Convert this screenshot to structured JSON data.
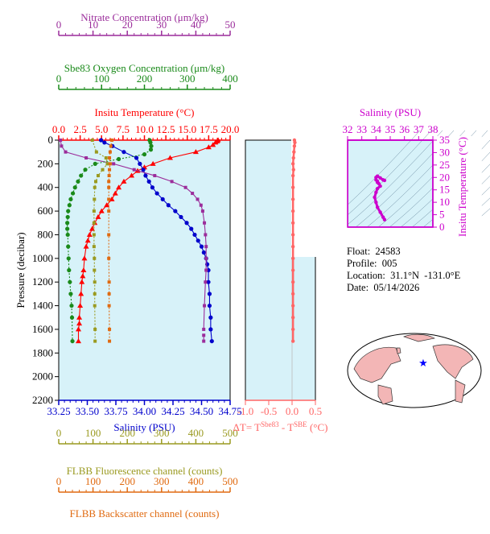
{
  "colors": {
    "nitrate": "#9b2d9b",
    "oxygen": "#1a8a1a",
    "temperature": "#ff0000",
    "salinity": "#0000cc",
    "salinity_ts": "#cc00cc",
    "fluorescence": "#9a9a20",
    "backscatter": "#e06a10",
    "delta_t": "#ff6666",
    "plot_bg": "#d7f2f9"
  },
  "info": {
    "float": "Float:  24583",
    "profile": "Profile:  005",
    "location": "Location:  31.1°N  -131.0°E",
    "date": "Date:  05/14/2026"
  },
  "chart_data": [
    {
      "type": "line",
      "ylabel": "Pressure (decibar)",
      "ylim": [
        2200,
        0
      ],
      "yticks": [
        "0",
        "200",
        "400",
        "600",
        "800",
        "1000",
        "1200",
        "1400",
        "1600",
        "1800",
        "2000",
        "2200"
      ],
      "grid": false,
      "axes": {
        "nitrate": {
          "label": "Nitrate Concentration (μm/kg)",
          "xlim": [
            0,
            50
          ],
          "ticks": [
            "0",
            "10",
            "20",
            "30",
            "40",
            "50"
          ]
        },
        "oxygen": {
          "label": "Sbe83 Oxygen Concentration (μm/kg)",
          "xlim": [
            0,
            400
          ],
          "ticks": [
            "0",
            "100",
            "200",
            "300",
            "400"
          ]
        },
        "temperature": {
          "label": "Insitu Temperature (°C)",
          "xlim": [
            0,
            20
          ],
          "ticks": [
            "0.0",
            "2.5",
            "5.0",
            "7.5",
            "10.0",
            "12.5",
            "15.0",
            "17.5",
            "20.0"
          ]
        },
        "salinity": {
          "label": "Salinity (PSU)",
          "xlim": [
            33.25,
            34.75
          ],
          "ticks": [
            "33.25",
            "33.50",
            "33.75",
            "34.00",
            "34.25",
            "34.50",
            "34.75"
          ]
        },
        "fluorescence": {
          "label": "FLBB Fluorescence channel (counts)",
          "xlim": [
            0,
            500
          ],
          "ticks": [
            "0",
            "100",
            "200",
            "300",
            "400",
            "500"
          ]
        },
        "backscatter": {
          "label": "FLBB Backscatter channel (counts)",
          "xlim": [
            0,
            500
          ],
          "ticks": [
            "0",
            "100",
            "200",
            "300",
            "400",
            "500"
          ]
        }
      },
      "series": [
        {
          "axis": "temperature",
          "marker": "triangle",
          "x": [
            18.6,
            18.5,
            18.3,
            18.0,
            17.5,
            16.0,
            13.0,
            11.0,
            10.0,
            9.2,
            8.5,
            7.6,
            7.0,
            6.6,
            6.2,
            5.6,
            5.0,
            4.6,
            4.2,
            3.9,
            3.6,
            3.4,
            3.2,
            3.0,
            2.9,
            2.8,
            2.7,
            2.6,
            2.5,
            2.4,
            2.4,
            2.3,
            2.3
          ],
          "y": [
            0,
            10,
            20,
            40,
            60,
            100,
            150,
            200,
            230,
            260,
            300,
            350,
            400,
            450,
            500,
            550,
            600,
            650,
            700,
            750,
            800,
            850,
            900,
            1000,
            1100,
            1150,
            1200,
            1300,
            1400,
            1500,
            1550,
            1600,
            1700
          ]
        },
        {
          "axis": "salinity",
          "marker": "circle",
          "x": [
            33.62,
            33.65,
            33.72,
            33.82,
            33.93,
            33.96,
            33.99,
            34.01,
            34.04,
            34.07,
            34.11,
            34.16,
            34.21,
            34.27,
            34.32,
            34.37,
            34.41,
            34.44,
            34.47,
            34.5,
            34.52,
            34.54,
            34.55,
            34.56,
            34.56,
            34.57,
            34.57,
            34.58,
            34.58,
            34.59
          ],
          "y": [
            0,
            20,
            50,
            100,
            150,
            200,
            250,
            300,
            350,
            400,
            450,
            500,
            550,
            600,
            650,
            700,
            750,
            800,
            850,
            900,
            950,
            1000,
            1050,
            1100,
            1200,
            1300,
            1400,
            1500,
            1600,
            1700
          ]
        },
        {
          "axis": "nitrate",
          "marker": "square",
          "x": [
            0.5,
            0.8,
            2,
            8,
            16,
            22,
            28,
            33,
            37,
            39,
            40.5,
            41.5,
            42,
            42.5,
            42.8,
            43,
            43,
            43,
            42.8,
            42.5,
            42.3
          ],
          "y": [
            0,
            50,
            100,
            150,
            200,
            250,
            300,
            350,
            400,
            450,
            500,
            550,
            600,
            700,
            800,
            900,
            1000,
            1100,
            1200,
            1400,
            1600
          ]
        },
        {
          "axis": "nitrate",
          "marker": "square",
          "x": [
            42.3,
            42.3
          ],
          "y": [
            1650,
            1700
          ]
        },
        {
          "axis": "oxygen",
          "marker": "circle",
          "x": [
            212,
            214,
            216,
            215,
            200,
            140,
            85,
            62,
            52,
            45,
            38,
            33,
            28,
            25,
            22,
            21,
            20,
            20,
            21,
            22,
            23,
            24,
            26,
            28,
            30,
            31,
            32
          ],
          "y": [
            0,
            20,
            50,
            80,
            120,
            160,
            200,
            250,
            300,
            350,
            400,
            450,
            500,
            550,
            600,
            650,
            700,
            750,
            800,
            900,
            1000,
            1100,
            1200,
            1300,
            1400,
            1500,
            1700
          ]
        },
        {
          "axis": "fluorescence",
          "marker": "square",
          "x": [
            98,
            110,
            138,
            142,
            128,
            115,
            108,
            105,
            104,
            103,
            103,
            103,
            103,
            104,
            104,
            105,
            105,
            105,
            106,
            106
          ],
          "y": [
            0,
            100,
            150,
            200,
            250,
            300,
            350,
            400,
            500,
            600,
            700,
            800,
            900,
            1000,
            1100,
            1200,
            1300,
            1400,
            1600,
            1700
          ]
        },
        {
          "axis": "backscatter",
          "marker": "square",
          "x": [
            155,
            152,
            150,
            148,
            150,
            148,
            147,
            146,
            146,
            146,
            146,
            146,
            146,
            147,
            147,
            147,
            148,
            148
          ],
          "y": [
            0,
            50,
            100,
            150,
            200,
            250,
            300,
            350,
            400,
            500,
            600,
            800,
            1000,
            1200,
            1300,
            1400,
            1600,
            1700
          ]
        }
      ]
    },
    {
      "type": "line",
      "xlabel": "ΔT= T^Sbe83 - T^SBE (°C)",
      "xlim": [
        -1.0,
        0.5
      ],
      "xticks": [
        "-1.0",
        "-0.5",
        "0.0",
        "0.5"
      ],
      "ylim": [
        2200,
        0
      ],
      "series": [
        {
          "marker": "circle",
          "x": [
            0.05,
            0.06,
            0.05,
            0.04,
            0.03,
            0.02,
            0.03,
            0.02,
            0.02,
            0.02,
            0.02,
            0.02,
            0.02,
            0.02,
            0.02,
            0.02,
            0.02,
            0.02,
            0.02,
            0.02,
            0.02,
            0.02,
            0.02,
            0.02,
            0.02,
            0.02,
            0.02,
            0.02
          ],
          "y": [
            0,
            20,
            50,
            100,
            150,
            200,
            250,
            300,
            400,
            500,
            600,
            700,
            800,
            900,
            1000,
            1100,
            1200,
            1300,
            1400,
            1500,
            1600,
            1700,
            1000,
            1100,
            1200,
            1300,
            1400,
            1500
          ]
        }
      ]
    },
    {
      "type": "scatter",
      "xlabel": "Salinity (PSU)",
      "ylabel": "Insitu Temperature (°C)",
      "xlim": [
        32,
        38
      ],
      "ylim": [
        0,
        35
      ],
      "xticks": [
        "32",
        "33",
        "34",
        "35",
        "36",
        "37",
        "38"
      ],
      "yticks": [
        "0",
        "5",
        "10",
        "15",
        "20",
        "25",
        "30",
        "35"
      ],
      "series": [
        {
          "x": [
            34.6,
            34.5,
            34.3,
            34.1,
            34.0,
            33.9,
            34.0,
            34.1,
            34.3,
            34.2,
            34.1,
            34.1,
            34.0,
            34.0,
            34.1,
            34.3,
            34.5,
            34.6
          ],
          "y": [
            3,
            4,
            6,
            8,
            10,
            12,
            14,
            15.5,
            16.5,
            17.5,
            18,
            18.5,
            19,
            20,
            20.5,
            19.8,
            19,
            18.8
          ]
        }
      ]
    }
  ]
}
